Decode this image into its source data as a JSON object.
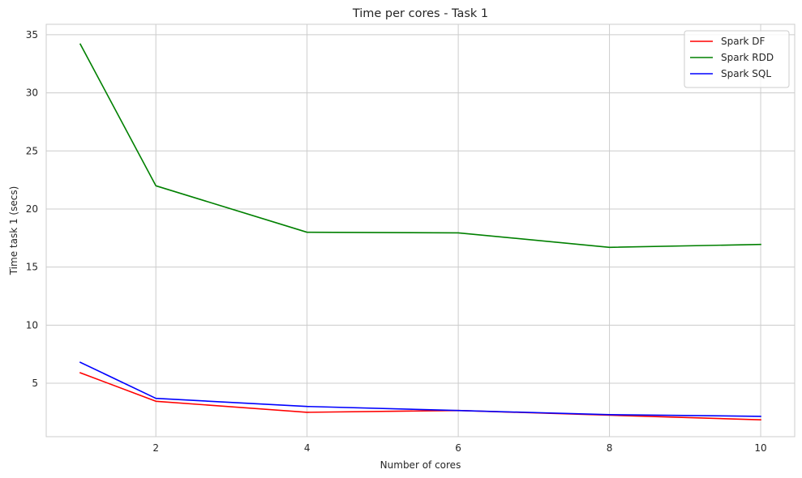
{
  "chart_data": {
    "type": "line",
    "title": "Time per cores - Task 1",
    "xlabel": "Number of cores",
    "ylabel": "Time task 1 (secs)",
    "x": [
      1,
      2,
      4,
      6,
      8,
      10
    ],
    "xlim": [
      0.55,
      10.45
    ],
    "ylim": [
      0.4,
      35.9
    ],
    "xticks": [
      2,
      4,
      6,
      8,
      10
    ],
    "yticks": [
      5,
      10,
      15,
      20,
      25,
      30,
      35
    ],
    "grid": true,
    "legend_position": "top-right",
    "series": [
      {
        "name": "Spark DF",
        "color": "#ff0000",
        "values": [
          5.9,
          3.45,
          2.5,
          2.65,
          2.25,
          1.85
        ]
      },
      {
        "name": "Spark RDD",
        "color": "#008000",
        "values": [
          34.2,
          22.0,
          18.0,
          17.95,
          16.7,
          16.95
        ]
      },
      {
        "name": "Spark SQL",
        "color": "#0000ff",
        "values": [
          6.8,
          3.7,
          3.0,
          2.65,
          2.3,
          2.15
        ]
      }
    ]
  }
}
